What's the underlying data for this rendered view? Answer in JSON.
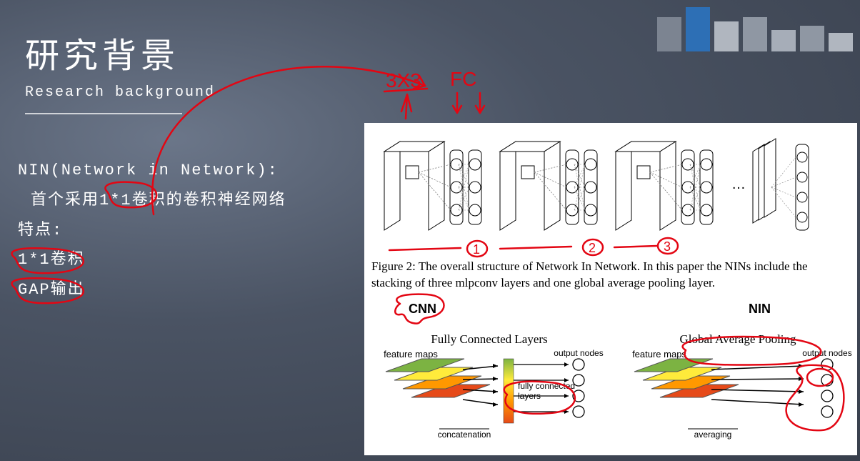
{
  "slide": {
    "title": "研究背景",
    "subtitle": "Research background",
    "nin_heading": "NIN(Network in Network):",
    "nin_desc": "首个采用1*1卷积的卷积神经网络",
    "features_label": "特点:",
    "feature1": "1*1卷积",
    "feature2": "GAP输出"
  },
  "figure": {
    "caption": "Figure 2: The overall structure of Network In Network. In this paper the NINs include the stacking of three mlpconv layers and one global average pooling layer.",
    "cnn_label": "CNN",
    "nin_label": "NIN",
    "cnn": {
      "title": "Fully Connected Layers",
      "left_label": "feature maps",
      "mid_label": "fully connected layers",
      "bottom_label": "concatenation",
      "right_label": "output nodes",
      "map_colors": [
        "#7cb342",
        "#ffeb3b",
        "#ff9800",
        "#e64a19"
      ],
      "node_count": 4
    },
    "nin": {
      "title": "Global Average Pooling",
      "left_label": "feature maps",
      "bottom_label": "averaging",
      "right_label": "output nodes",
      "map_colors": [
        "#7cb342",
        "#ffeb3b",
        "#ff9800",
        "#e64a19"
      ],
      "node_count": 4
    },
    "arch": {
      "blocks": 3,
      "mlp_cols": 2,
      "mlp_nodes": 3,
      "output_nodes": 4
    }
  },
  "annotations": {
    "color": "#e30613",
    "text1": "3X3",
    "text2": "FC"
  },
  "colors": {
    "bg_grad_start": "#6b7689",
    "bg_grad_end": "#383f4c",
    "accent_blue": "#2d6fb5",
    "panel_bg": "#ffffff",
    "text_light": "#ffffff",
    "text_dark": "#000000"
  }
}
